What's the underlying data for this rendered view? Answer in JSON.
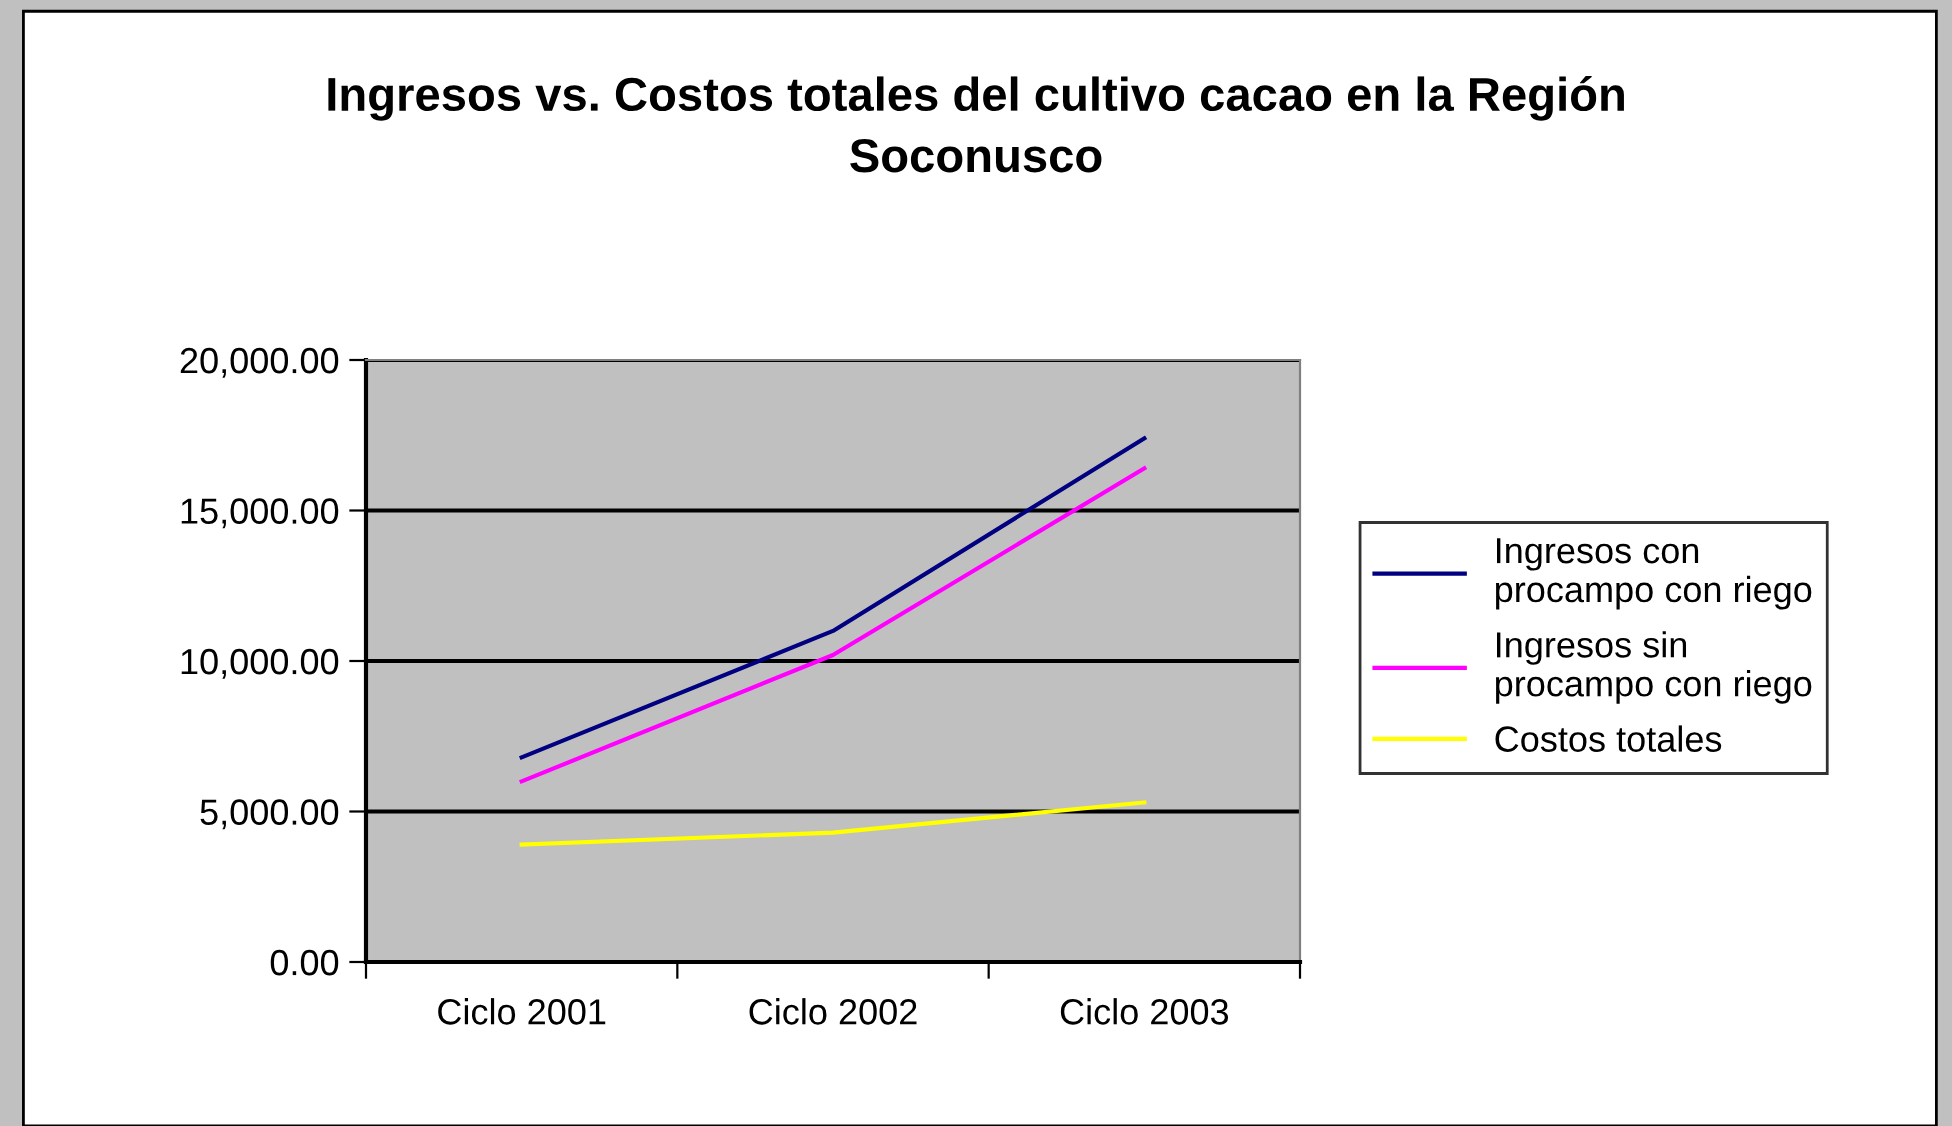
{
  "chart_data": {
    "type": "line",
    "title": "Ingresos vs. Costos totales del cultivo cacao en la Región Soconusco",
    "categories": [
      "Ciclo 2001",
      "Ciclo 2002",
      "Ciclo 2003"
    ],
    "series": [
      {
        "name": "Ingresos con procampo con riego",
        "color": "#000080",
        "values": [
          6800,
          11000,
          17400
        ]
      },
      {
        "name": "Ingresos sin procampo con riego",
        "color": "#ff00ff",
        "values": [
          6000,
          10200,
          16400
        ]
      },
      {
        "name": "Costos totales",
        "color": "#ffff00",
        "values": [
          3900,
          4300,
          5300
        ]
      }
    ],
    "ylim": [
      0,
      20000
    ],
    "yticks": [
      {
        "value": 0,
        "label": "0.00"
      },
      {
        "value": 5000,
        "label": "5,000.00"
      },
      {
        "value": 10000,
        "label": "10,000.00"
      },
      {
        "value": 15000,
        "label": "15,000.00"
      },
      {
        "value": 20000,
        "label": "20,000.00"
      }
    ],
    "grid": "y",
    "legend": "right",
    "marker": "none",
    "line_style": "solid"
  }
}
